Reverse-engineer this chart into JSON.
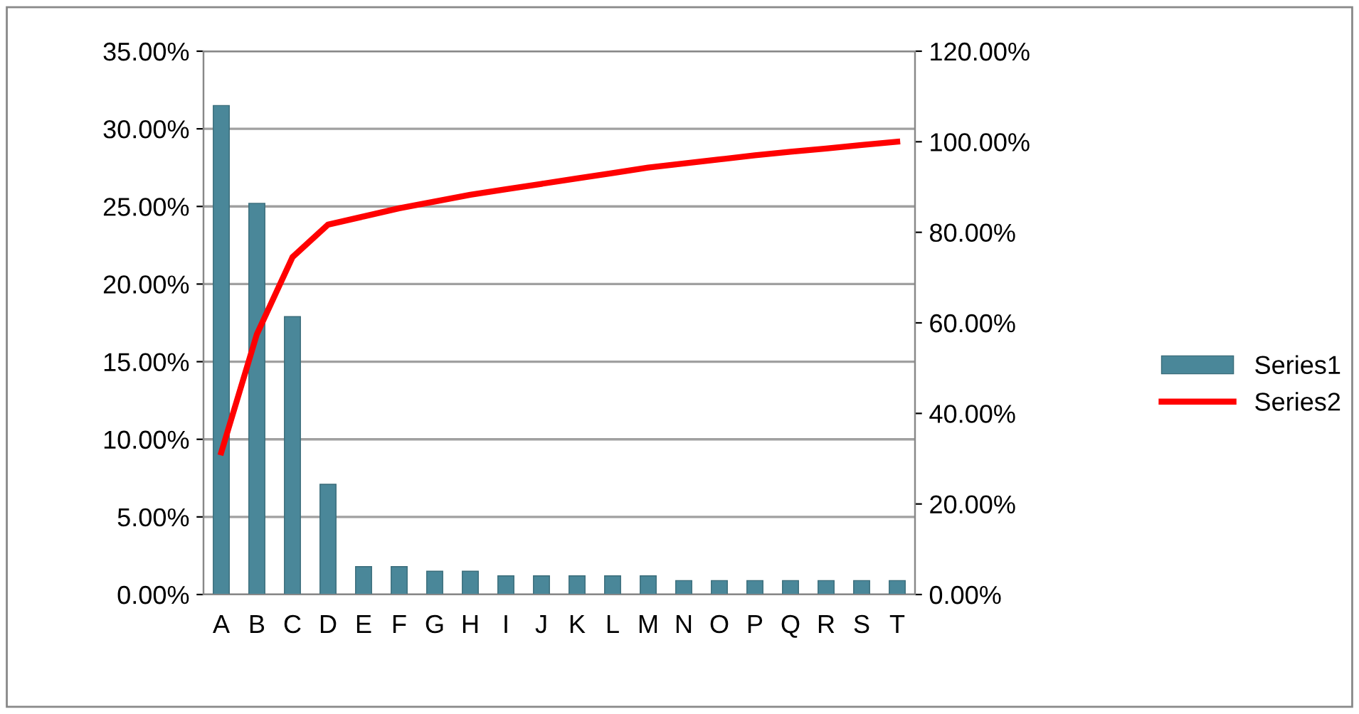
{
  "chart_data": {
    "type": "bar",
    "categories": [
      "A",
      "B",
      "C",
      "D",
      "E",
      "F",
      "G",
      "H",
      "I",
      "J",
      "K",
      "L",
      "M",
      "N",
      "O",
      "P",
      "Q",
      "R",
      "S",
      "T"
    ],
    "series": [
      {
        "name": "Series1",
        "color": "#4a8799",
        "values": [
          31.5,
          25.2,
          17.9,
          7.1,
          1.8,
          1.8,
          1.5,
          1.5,
          1.2,
          1.2,
          1.2,
          1.2,
          1.2,
          0.9,
          0.9,
          0.9,
          0.9,
          0.9,
          0.9,
          0.9
        ]
      },
      {
        "name": "Series2",
        "type": "line",
        "axis": "y2",
        "color": "#ff0000",
        "values": [
          31.4,
          57.5,
          74.5,
          81.7,
          83.5,
          85.3,
          86.8,
          88.3,
          89.5,
          90.7,
          91.9,
          93.1,
          94.3,
          95.2,
          96.1,
          97.0,
          97.8,
          98.5,
          99.3,
          100
        ]
      }
    ],
    "ylim": [
      0,
      35
    ],
    "yticks": [
      {
        "value": 0,
        "label": "0.00%"
      },
      {
        "value": 5,
        "label": "5.00%"
      },
      {
        "value": 10,
        "label": "10.00%"
      },
      {
        "value": 15,
        "label": "15.00%"
      },
      {
        "value": 20,
        "label": "20.00%"
      },
      {
        "value": 25,
        "label": "25.00%"
      },
      {
        "value": 30,
        "label": "30.00%"
      },
      {
        "value": 35,
        "label": "35.00%"
      }
    ],
    "y2lim": [
      0,
      120
    ],
    "y2ticks": [
      {
        "value": 0,
        "label": "0.00%"
      },
      {
        "value": 20,
        "label": "20.00%"
      },
      {
        "value": 40,
        "label": "40.00%"
      },
      {
        "value": 60,
        "label": "60.00%"
      },
      {
        "value": 80,
        "label": "80.00%"
      },
      {
        "value": 100,
        "label": "100.00%"
      },
      {
        "value": 120,
        "label": "120.00%"
      }
    ],
    "grid": "y",
    "legend": "right"
  }
}
